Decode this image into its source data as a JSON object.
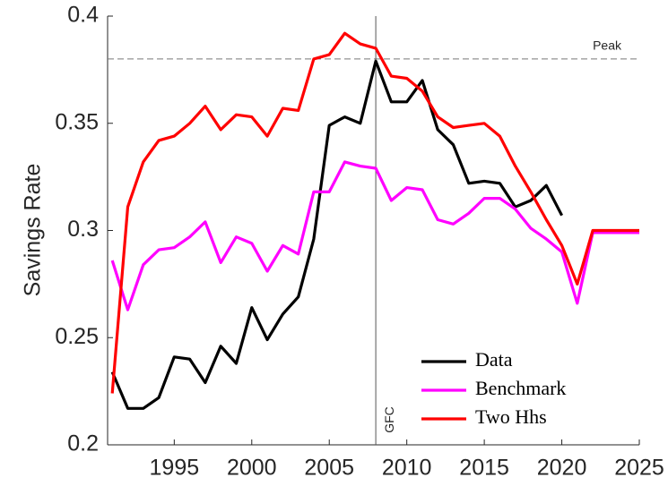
{
  "chart_data": {
    "type": "line",
    "y_label": "Savings Rate",
    "x": [
      1991,
      1992,
      1993,
      1994,
      1995,
      1996,
      1997,
      1998,
      1999,
      2000,
      2001,
      2002,
      2003,
      2004,
      2005,
      2006,
      2007,
      2008,
      2009,
      2010,
      2011,
      2012,
      2013,
      2014,
      2015,
      2016,
      2017,
      2018,
      2019,
      2020,
      2021,
      2022,
      2023,
      2024,
      2025
    ],
    "series": [
      {
        "name": "Data",
        "color": "#000000",
        "values": [
          0.234,
          0.217,
          0.217,
          0.222,
          0.241,
          0.24,
          0.229,
          0.246,
          0.238,
          0.264,
          0.249,
          0.261,
          0.269,
          0.296,
          0.349,
          0.353,
          0.35,
          0.379,
          0.36,
          0.36,
          0.37,
          0.347,
          0.34,
          0.322,
          0.323,
          0.322,
          0.311,
          0.314,
          0.321,
          0.307,
          null,
          null,
          null,
          null,
          null
        ]
      },
      {
        "name": "Benchmark",
        "color": "#ff00ff",
        "values": [
          0.286,
          0.263,
          0.284,
          0.291,
          0.292,
          0.297,
          0.304,
          0.285,
          0.297,
          0.294,
          0.281,
          0.293,
          0.289,
          0.318,
          0.318,
          0.332,
          0.33,
          0.329,
          0.314,
          0.32,
          0.319,
          0.305,
          0.303,
          0.308,
          0.315,
          0.315,
          0.31,
          0.301,
          0.296,
          0.29,
          0.266,
          0.299,
          0.299,
          0.299,
          0.299
        ]
      },
      {
        "name": "Two Hhs",
        "color": "#ff0000",
        "values": [
          0.224,
          0.311,
          0.332,
          0.342,
          0.344,
          0.35,
          0.358,
          0.347,
          0.354,
          0.353,
          0.344,
          0.357,
          0.356,
          0.38,
          0.382,
          0.392,
          0.387,
          0.385,
          0.372,
          0.371,
          0.365,
          0.353,
          0.348,
          0.349,
          0.35,
          0.344,
          0.33,
          0.318,
          0.305,
          0.293,
          0.275,
          0.3,
          0.3,
          0.3,
          0.3
        ]
      }
    ],
    "xlim": [
      1990.7,
      2025
    ],
    "xticks": [
      1995,
      2000,
      2005,
      2010,
      2015,
      2020,
      2025
    ],
    "ylim": [
      0.2,
      0.4
    ],
    "yticks": [
      0.2,
      0.25,
      0.3,
      0.35,
      0.4
    ],
    "peak": {
      "label": "Peak",
      "value": 0.38
    },
    "gfc": {
      "label": "GFC",
      "x": 2008
    },
    "legend": "lower right"
  }
}
